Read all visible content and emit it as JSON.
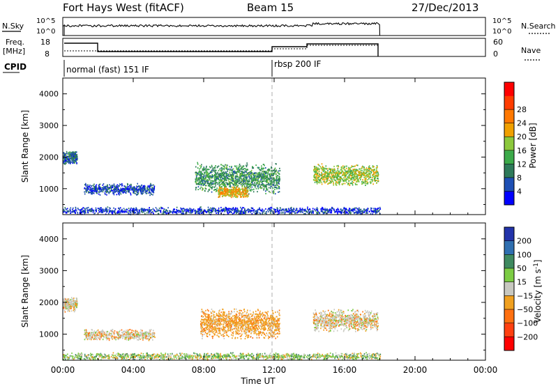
{
  "header": {
    "station": "Fort Hays West (fitACF)",
    "beam": "Beam 15",
    "date": "27/Dec/2013"
  },
  "strips": {
    "nsky_label": "N.Sky",
    "nsearch_label": "N.Search",
    "noise_ticks": [
      "10^5",
      "10^0"
    ],
    "freq_label_1": "Freq.",
    "freq_label_2": "[MHz]",
    "freq_ticks": [
      "18",
      "8"
    ],
    "nave_label": "Nave",
    "nave_ticks": [
      "60",
      "0"
    ],
    "cpid_label": "CPID",
    "modes": [
      {
        "name": "normal (fast) 151 IF",
        "start_hour": 0
      },
      {
        "name": "rbsp 200 IF",
        "start_hour": 12
      }
    ]
  },
  "colors": {
    "power_scale": [
      "#0000ff",
      "#1e4fb4",
      "#2e7a5a",
      "#3caa4a",
      "#8cc83c",
      "#f0a000",
      "#ff7800",
      "#ff3c00",
      "#ff0000"
    ],
    "velocity_scale": [
      "#2233aa",
      "#2f6fb0",
      "#3f8a60",
      "#7ccc44",
      "#c8c8c0",
      "#f0a020",
      "#ff7010",
      "#ff4010",
      "#ff0000"
    ]
  },
  "chart_data": [
    {
      "type": "heatmap",
      "title": "Power",
      "xlabel": "Time UT",
      "ylabel": "Slant Range [km]",
      "x_ticks": [
        "00:00",
        "04:00",
        "08:00",
        "12:00",
        "16:00",
        "20:00",
        "00:00"
      ],
      "xlim_hours": [
        0,
        24
      ],
      "y_ticks": [
        1000,
        2000,
        3000,
        4000
      ],
      "ylim_km": [
        180,
        4500
      ],
      "colorbar": {
        "label": "Power [dB]",
        "ticks": [
          4,
          8,
          12,
          16,
          20,
          24,
          28
        ],
        "range": [
          0,
          32
        ]
      },
      "data_coverage_hours": [
        0,
        18
      ],
      "echo_regions": [
        {
          "t_start": 0.0,
          "t_end": 0.8,
          "r_center_km": 2000,
          "r_half_km": 180,
          "value": 8
        },
        {
          "t_start": 1.2,
          "t_end": 5.2,
          "r_center_km": 1000,
          "r_half_km": 160,
          "value": 6
        },
        {
          "t_start": 7.5,
          "t_end": 12.3,
          "r_center_km": 1350,
          "r_half_km": 420,
          "value": 12
        },
        {
          "t_start": 8.8,
          "t_end": 10.5,
          "r_center_km": 900,
          "r_half_km": 150,
          "value": 22
        },
        {
          "t_start": 14.2,
          "t_end": 17.9,
          "r_center_km": 1450,
          "r_half_km": 300,
          "value": 18
        },
        {
          "t_start": 0.0,
          "t_end": 18.0,
          "r_center_km": 320,
          "r_half_km": 100,
          "value": 5
        }
      ]
    },
    {
      "type": "heatmap",
      "title": "Velocity",
      "xlabel": "Time UT",
      "ylabel": "Slant Range [km]",
      "x_ticks": [
        "00:00",
        "04:00",
        "08:00",
        "12:00",
        "16:00",
        "20:00",
        "00:00"
      ],
      "xlim_hours": [
        0,
        24
      ],
      "y_ticks": [
        1000,
        2000,
        3000,
        4000
      ],
      "ylim_km": [
        180,
        4500
      ],
      "colorbar": {
        "label": "Velocity [m s^-1]",
        "ticks": [
          200,
          100,
          50,
          15,
          -15,
          -50,
          -100,
          -200
        ]
      },
      "data_coverage_hours": [
        0,
        18
      ],
      "echo_regions": [
        {
          "t_start": 0.0,
          "t_end": 0.8,
          "r_center_km": 1950,
          "r_half_km": 200,
          "value": 0
        },
        {
          "t_start": 1.2,
          "t_end": 5.2,
          "r_center_km": 1000,
          "r_half_km": 150,
          "value": 0
        },
        {
          "t_start": 7.8,
          "t_end": 12.3,
          "r_center_km": 1350,
          "r_half_km": 420,
          "value": -40
        },
        {
          "t_start": 14.2,
          "t_end": 17.9,
          "r_center_km": 1450,
          "r_half_km": 300,
          "value": 0
        },
        {
          "t_start": 0.0,
          "t_end": 18.0,
          "r_center_km": 320,
          "r_half_km": 100,
          "value": 20
        }
      ]
    }
  ]
}
